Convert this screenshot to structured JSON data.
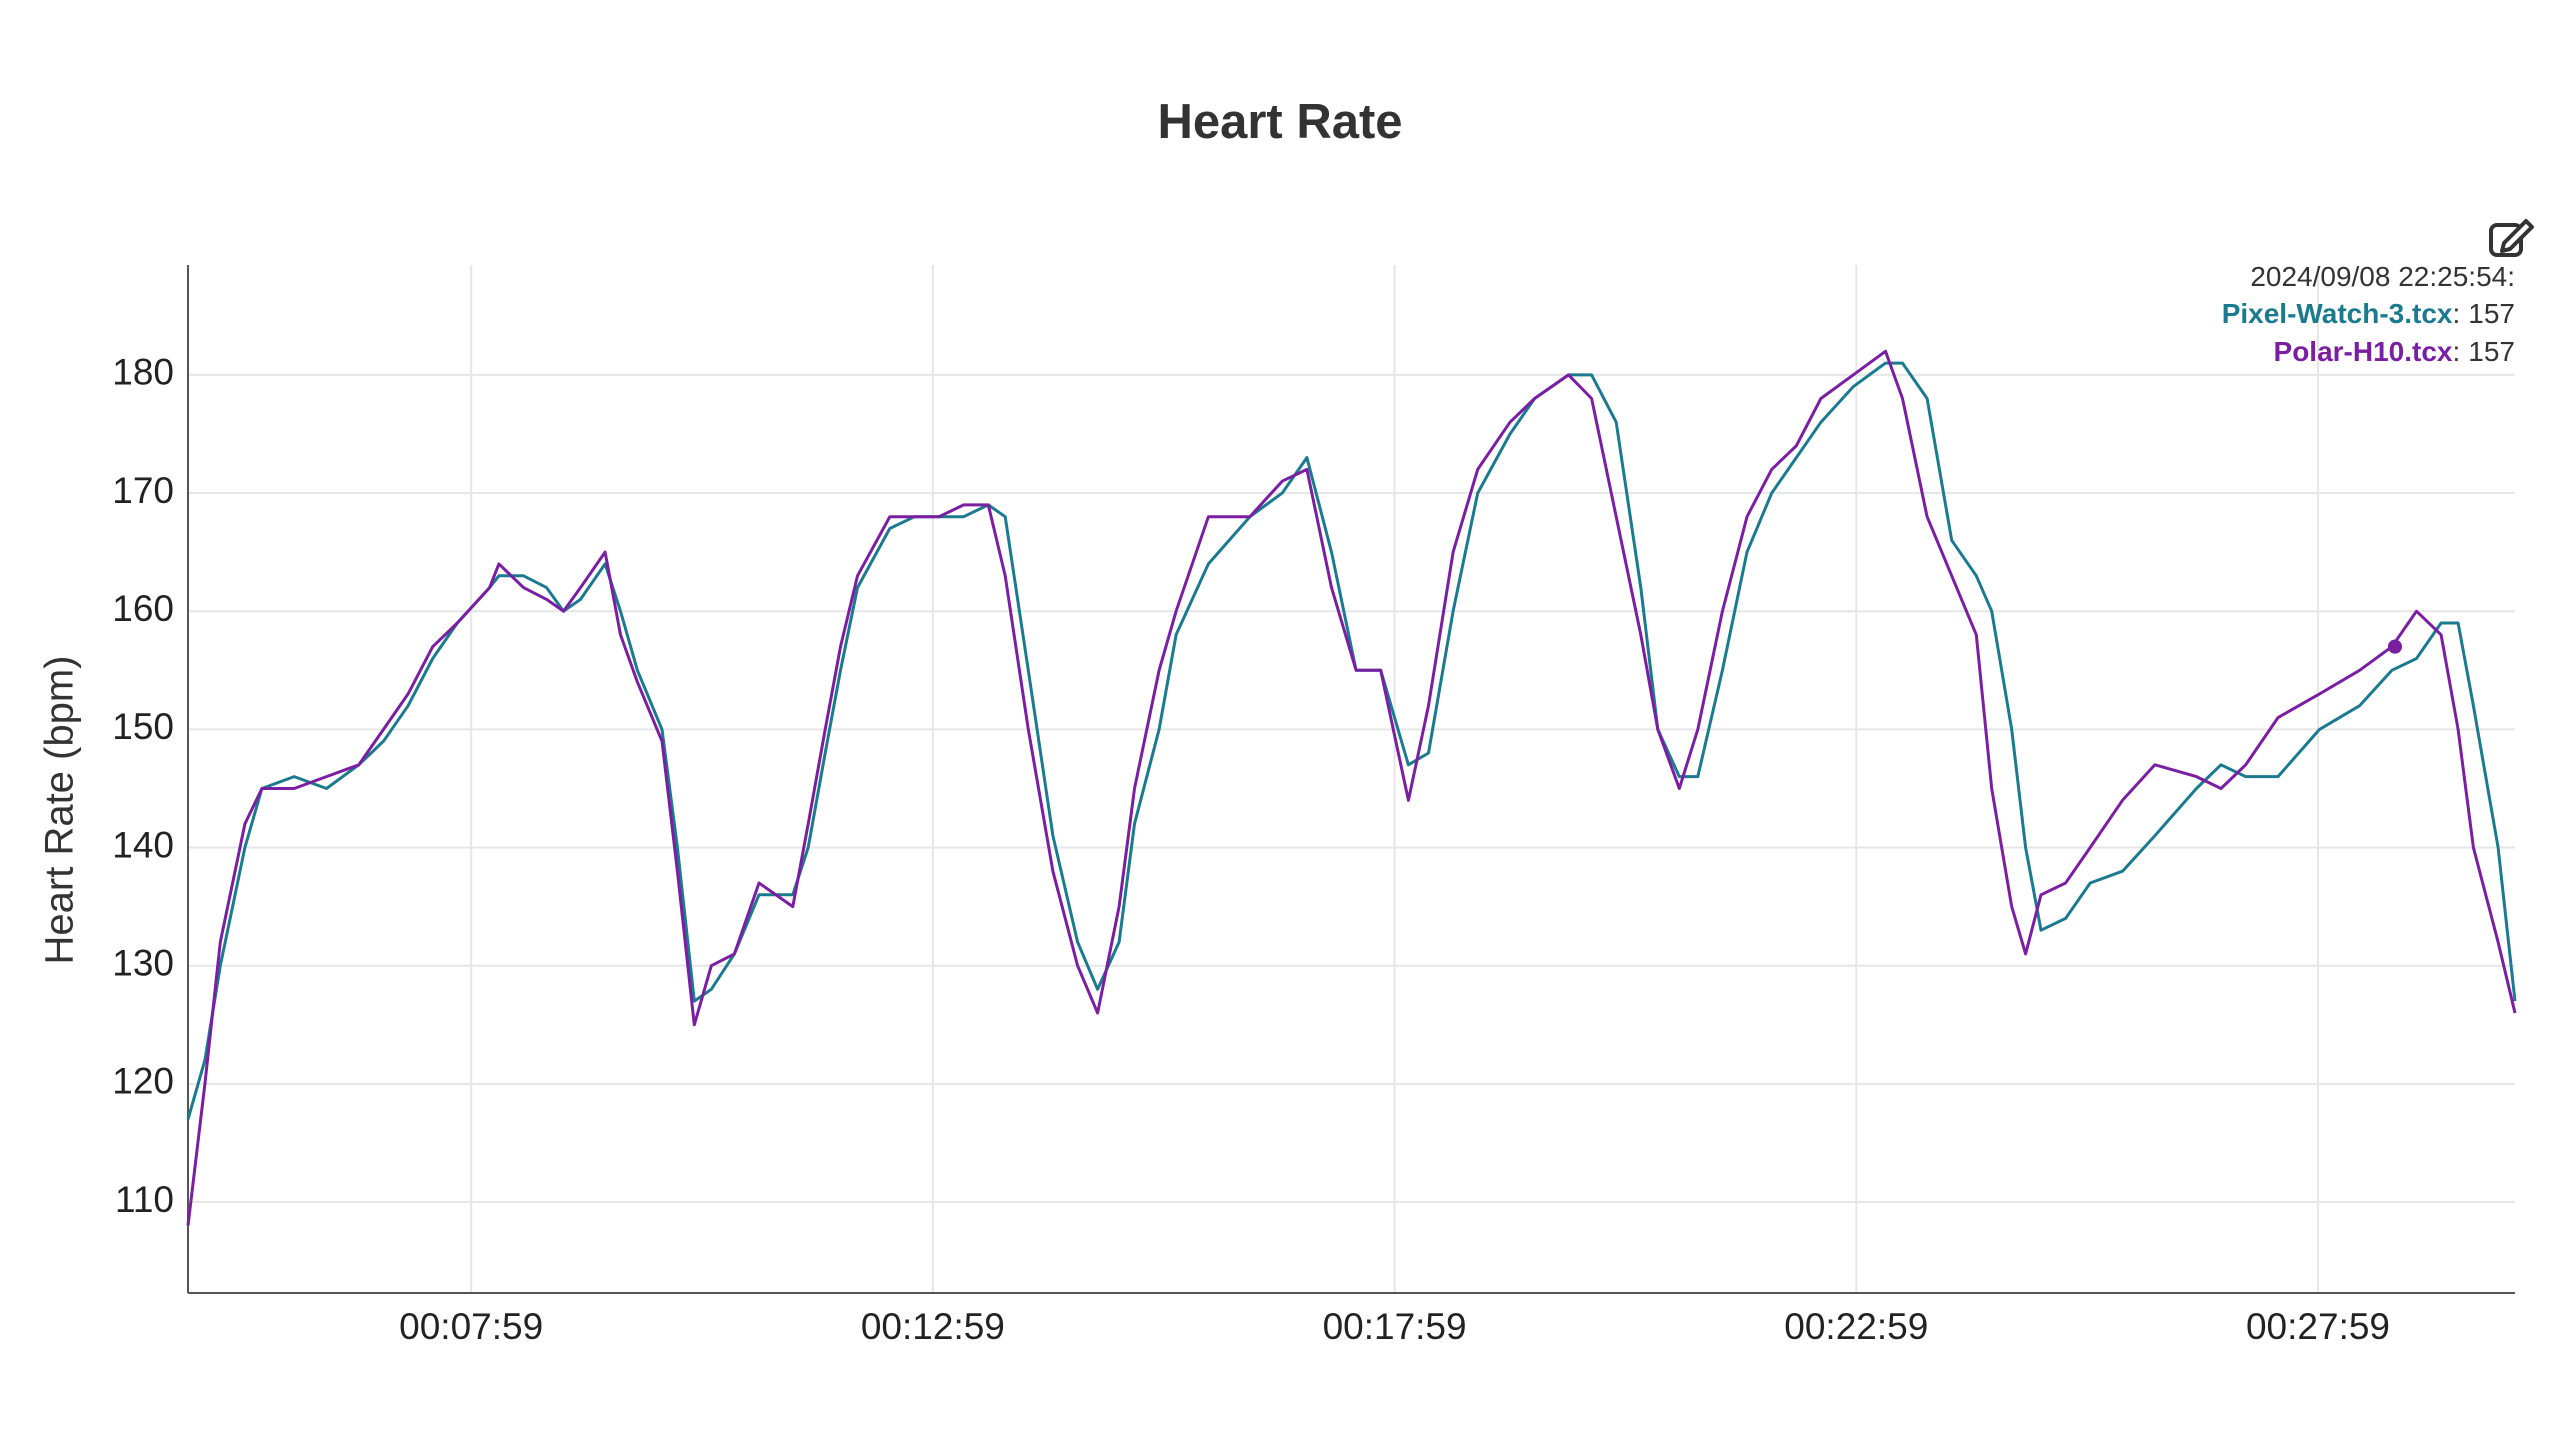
{
  "chart_data": {
    "type": "line",
    "title": "Heart Rate",
    "y_label": "Heart Rate (bpm)",
    "x": [
      295,
      306,
      316,
      332,
      343,
      364,
      385,
      406,
      422,
      438,
      454,
      470,
      491,
      497,
      513,
      528,
      539,
      550,
      566,
      576,
      587,
      603,
      613,
      624,
      635,
      650,
      666,
      688,
      698,
      709,
      719,
      730,
      751,
      767,
      783,
      799,
      815,
      826,
      841,
      857,
      873,
      886,
      900,
      910,
      926,
      937,
      958,
      985,
      1006,
      1022,
      1038,
      1054,
      1070,
      1088,
      1101,
      1117,
      1133,
      1154,
      1170,
      1192,
      1207,
      1223,
      1239,
      1250,
      1264,
      1276,
      1292,
      1308,
      1324,
      1340,
      1356,
      1377,
      1398,
      1409,
      1425,
      1441,
      1457,
      1467,
      1480,
      1489,
      1499,
      1515,
      1531,
      1552,
      1573,
      1600,
      1616,
      1632,
      1653,
      1680,
      1706,
      1727,
      1743,
      1759,
      1770,
      1780,
      1796,
      1807
    ],
    "series": [
      {
        "name": "Pixel-Watch-3.tcx",
        "color": "#1b7a8e",
        "values": [
          117,
          122,
          130,
          140,
          145,
          146,
          145,
          147,
          149,
          152,
          156,
          159,
          162,
          163,
          163,
          162,
          160,
          161,
          164,
          160,
          155,
          150,
          140,
          127,
          128,
          131,
          136,
          136,
          140,
          148,
          155,
          162,
          167,
          168,
          168,
          168,
          169,
          168,
          155,
          141,
          132,
          128,
          132,
          142,
          150,
          158,
          164,
          168,
          170,
          173,
          165,
          155,
          155,
          147,
          148,
          160,
          170,
          175,
          178,
          180,
          180,
          176,
          162,
          150,
          146,
          146,
          155,
          165,
          170,
          173,
          176,
          179,
          181,
          181,
          178,
          166,
          163,
          160,
          150,
          140,
          133,
          134,
          137,
          138,
          141,
          145,
          147,
          146,
          146,
          150,
          152,
          155,
          156,
          159,
          159,
          152,
          140,
          127
        ]
      },
      {
        "name": "Polar-H10.tcx",
        "color": "#7a1fa2",
        "values": [
          108,
          120,
          132,
          142,
          145,
          145,
          146,
          147,
          150,
          153,
          157,
          159,
          162,
          164,
          162,
          161,
          160,
          162,
          165,
          158,
          154,
          149,
          138,
          125,
          130,
          131,
          137,
          135,
          142,
          150,
          157,
          163,
          168,
          168,
          168,
          169,
          169,
          163,
          150,
          138,
          130,
          126,
          135,
          145,
          155,
          160,
          168,
          168,
          171,
          172,
          162,
          155,
          155,
          144,
          152,
          165,
          172,
          176,
          178,
          180,
          178,
          168,
          158,
          150,
          145,
          150,
          160,
          168,
          172,
          174,
          178,
          180,
          182,
          178,
          168,
          163,
          158,
          145,
          135,
          131,
          136,
          137,
          140,
          144,
          147,
          146,
          145,
          147,
          151,
          153,
          155,
          157,
          160,
          158,
          150,
          140,
          132,
          126
        ]
      }
    ],
    "xlim": [
      295,
      1807
    ],
    "xticks": [
      {
        "value": 479,
        "label": "00:07:59"
      },
      {
        "value": 779,
        "label": "00:12:59"
      },
      {
        "value": 1079,
        "label": "00:17:59"
      },
      {
        "value": 1379,
        "label": "00:22:59"
      },
      {
        "value": 1679,
        "label": "00:27:59"
      }
    ],
    "ylim": [
      102.3,
      189.3
    ],
    "yticks": [
      110,
      120,
      130,
      140,
      150,
      160,
      170,
      180
    ],
    "grid": true,
    "hover": {
      "x": 1729,
      "label": "2024/09/08 22:25:54:",
      "separator": ":",
      "values": [
        157,
        157
      ]
    }
  }
}
